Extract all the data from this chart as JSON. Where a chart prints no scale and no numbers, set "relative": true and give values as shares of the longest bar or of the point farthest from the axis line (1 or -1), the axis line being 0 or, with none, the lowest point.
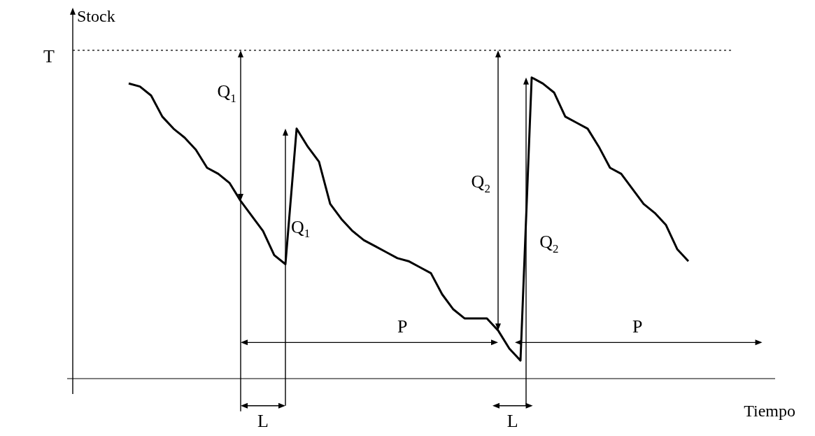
{
  "chart_data": {
    "type": "line",
    "relative": true,
    "ylabel": "Stock",
    "xlabel": "Tiempo",
    "marker": "none",
    "line_style": "solid",
    "categories": [
      null,
      null,
      null,
      null,
      null,
      null,
      null,
      null,
      null,
      null,
      null,
      null,
      null,
      null,
      null,
      null,
      null,
      null,
      null,
      null,
      null,
      null,
      null,
      null,
      null,
      null,
      null,
      null,
      null,
      null,
      null,
      null,
      null,
      null,
      null,
      null,
      null,
      null,
      null,
      null,
      null,
      null,
      null,
      null,
      null,
      null,
      null,
      null,
      null,
      null,
      null
    ],
    "series": [
      {
        "color": "#000000",
        "values": [
          0.98,
          0.97,
          0.94,
          0.87,
          0.83,
          0.8,
          0.76,
          0.7,
          0.68,
          0.65,
          0.59,
          0.54,
          0.49,
          0.41,
          0.38,
          0.83,
          0.77,
          0.72,
          0.58,
          0.53,
          0.49,
          0.46,
          0.44,
          0.42,
          0.4,
          0.39,
          0.37,
          0.35,
          0.28,
          0.23,
          0.2,
          0.2,
          0.2,
          0.16,
          0.1,
          0.06,
          1,
          0.98,
          0.95,
          0.87,
          0.85,
          0.83,
          0.77,
          0.7,
          0.68,
          0.63,
          0.58,
          0.55,
          0.51,
          0.43,
          0.39
        ]
      }
    ],
    "ref_lines": [
      {
        "axis": "y",
        "value": 1.09,
        "label": "T",
        "line_style": "dotted",
        "color": "#000000"
      }
    ],
    "annotations": [
      "Q$_{1}$",
      "Q$_{1}$",
      "Q$_{2}$",
      "Q$_{2}$",
      "P",
      "P",
      "L",
      "L"
    ]
  }
}
